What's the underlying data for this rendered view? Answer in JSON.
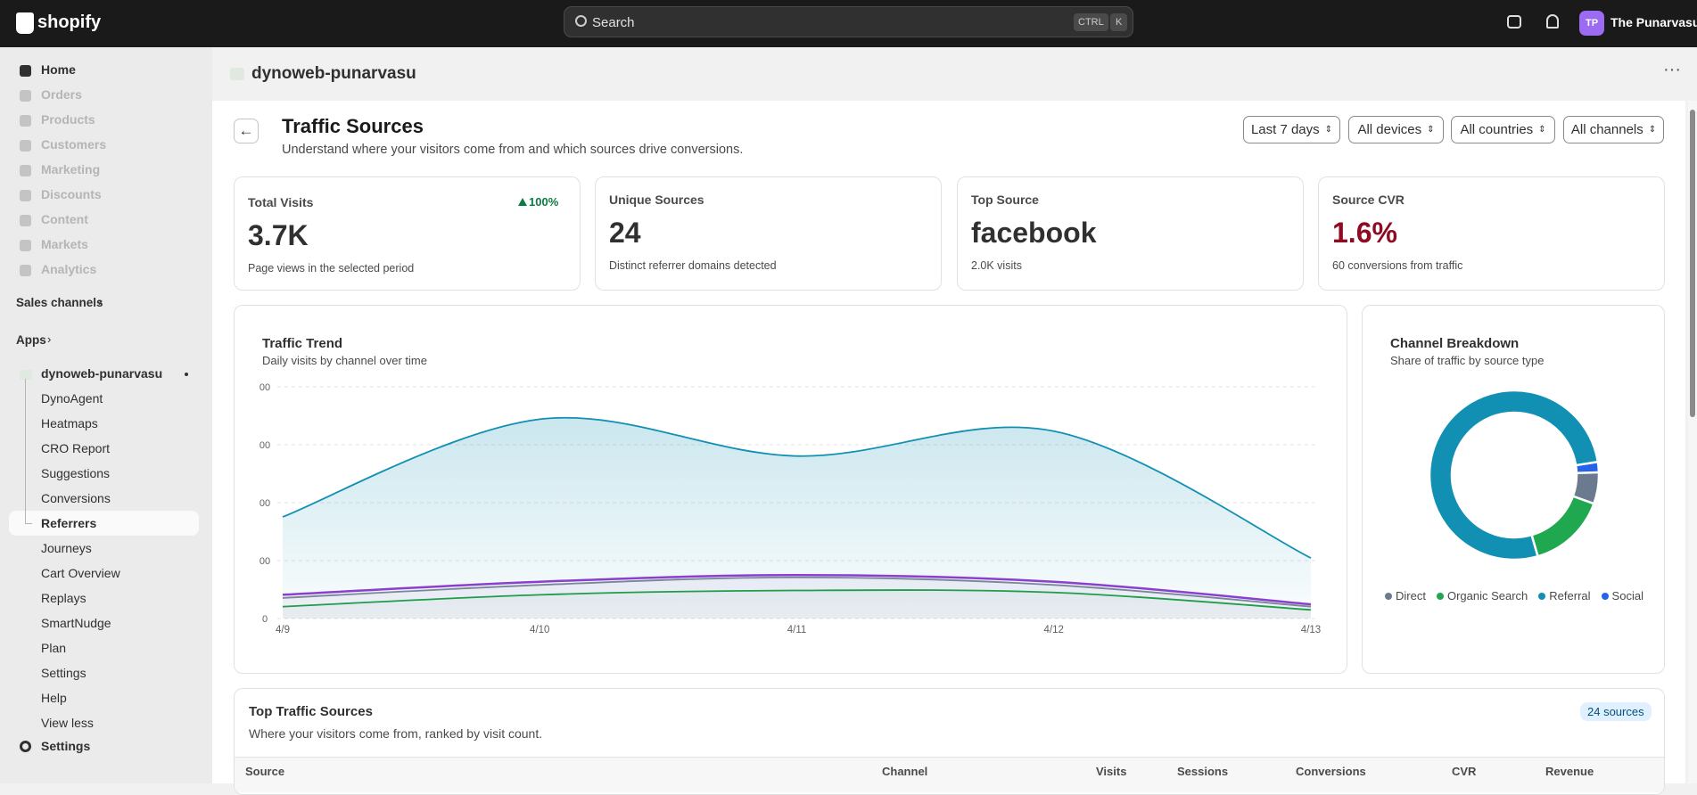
{
  "topbar": {
    "logo": "shopify",
    "search": "Search",
    "shortcut": [
      "CTRL",
      "K"
    ],
    "avatar": "TP",
    "user": "The Punarvasu"
  },
  "sidebar": {
    "main": [
      "Home",
      "Orders",
      "Products",
      "Customers",
      "Marketing",
      "Discounts",
      "Content",
      "Markets",
      "Analytics"
    ],
    "sales_channels": "Sales channels",
    "apps": "Apps",
    "app": {
      "name": "dynoweb-punarvasu",
      "items": [
        "DynoAgent",
        "Heatmaps",
        "CRO Report",
        "Suggestions",
        "Conversions",
        "Referrers",
        "Journeys",
        "Cart Overview",
        "Replays",
        "SmartNudge",
        "Plan",
        "Settings",
        "Help"
      ]
    },
    "view_less": "View less",
    "settings": "Settings"
  },
  "store": {
    "name": "dynoweb-punarvasu"
  },
  "page": {
    "title": "Traffic Sources",
    "subtitle": "Understand where your visitors come from and which sources drive conversions.",
    "filters": [
      "Last 7 days",
      "All devices",
      "All countries",
      "All channels"
    ]
  },
  "kpis": [
    {
      "label": "Total Visits",
      "value": "3.7K",
      "badge": "100%",
      "note": "Page views in the selected period"
    },
    {
      "label": "Unique Sources",
      "value": "24",
      "note": "Distinct referrer domains detected"
    },
    {
      "label": "Top Source",
      "value": "facebook",
      "note": "2.0K visits"
    },
    {
      "label": "Source CVR",
      "value": "1.6%",
      "note": "60 conversions from traffic"
    }
  ],
  "trend": {
    "type": "line",
    "title": "Traffic Trend",
    "subtitle": "Daily visits by channel over time",
    "categories": [
      "4/9",
      "4/10",
      "4/11",
      "4/12",
      "4/13"
    ],
    "series": [
      {
        "color": "#1190b3",
        "values": [
          351,
          688,
          561,
          647,
          209
        ]
      },
      {
        "color": "#8a3fd1",
        "values": [
          82,
          127,
          150,
          127,
          49
        ]
      },
      {
        "color": "#7a8596",
        "values": [
          71,
          116,
          142,
          116,
          41
        ]
      },
      {
        "color": "#1f9d48",
        "values": [
          41,
          82,
          97,
          90,
          30
        ]
      }
    ],
    "ylim": [
      0,
      800
    ],
    "yticks": [
      0,
      {
        "value": 200,
        "label": "00"
      },
      {
        "value": 400,
        "label": "00"
      },
      {
        "value": 600,
        "label": "00"
      },
      {
        "value": 800,
        "label": "00"
      }
    ],
    "grid": true
  },
  "channels": {
    "type": "pie",
    "title": "Channel Breakdown",
    "subtitle": "Share of traffic by source type",
    "categories": [
      "Direct",
      "Organic Search",
      "Referral",
      "Social"
    ],
    "values": [
      6,
      15,
      77,
      2
    ],
    "colors": [
      "#6b7a8f",
      "#1fa84f",
      "#1190b3",
      "#2563eb"
    ]
  },
  "table": {
    "title": "Top Traffic Sources",
    "subtitle": "Where your visitors come from, ranked by visit count.",
    "badge": "24 sources",
    "columns": [
      "Source",
      "Channel",
      "Visits",
      "Sessions",
      "Conversions",
      "CVR",
      "Revenue"
    ]
  }
}
